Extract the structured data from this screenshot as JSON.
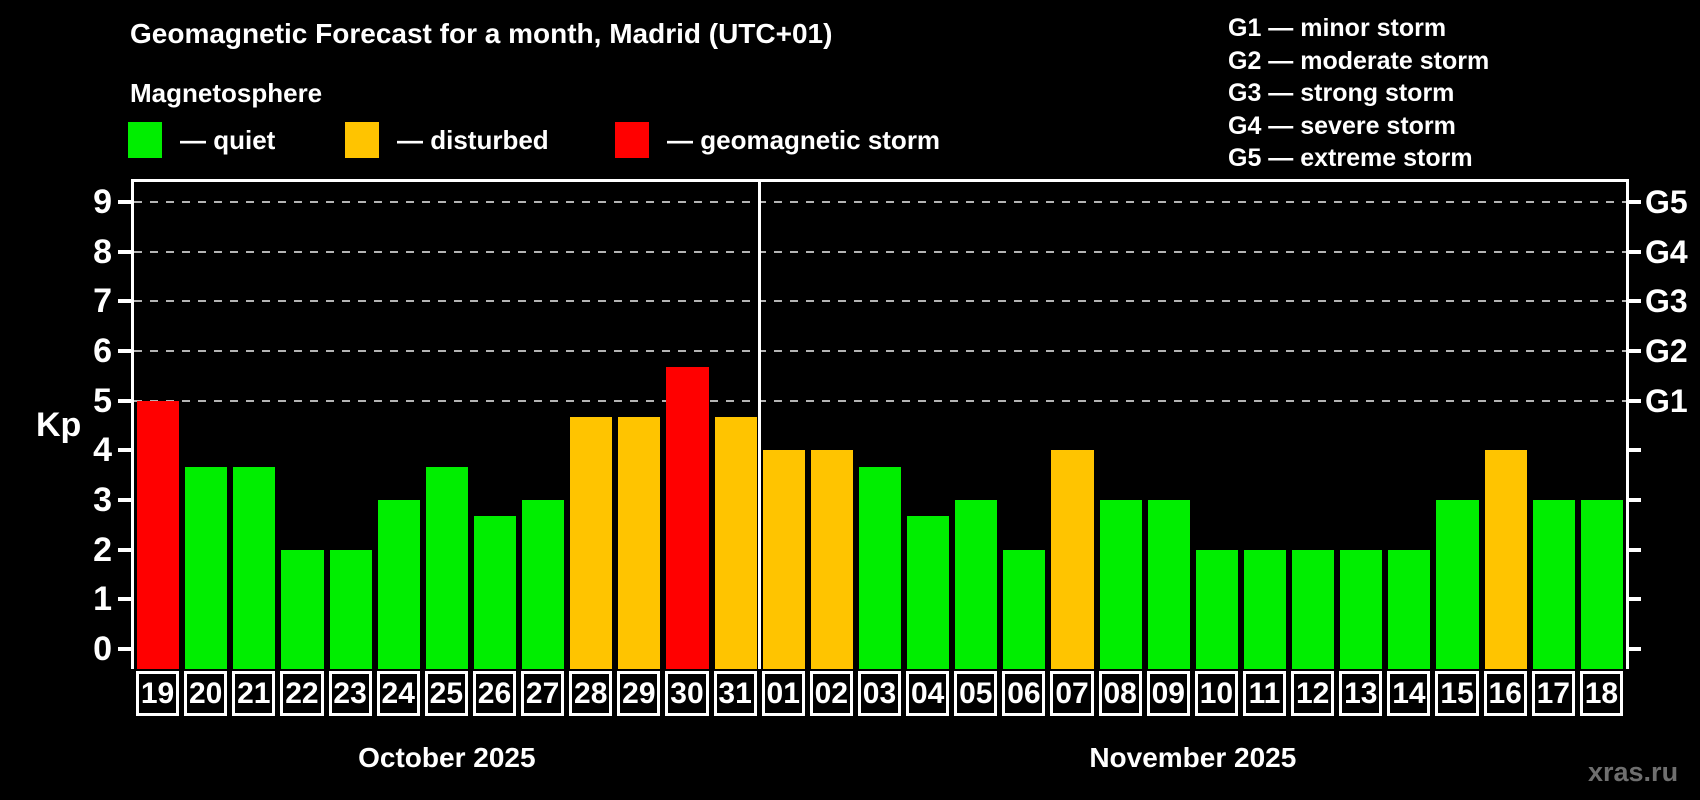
{
  "header": {
    "title": "Geomagnetic Forecast for a month, Madrid (UTC+01)",
    "subtitle": "Magnetosphere",
    "legend": [
      {
        "key": "quiet",
        "label": "— quiet"
      },
      {
        "key": "disturbed",
        "label": "— disturbed"
      },
      {
        "key": "storm",
        "label": "— geomagnetic storm"
      }
    ],
    "g_legend": [
      "G1 — minor storm",
      "G2 — moderate storm",
      "G3 — strong storm",
      "G4 — severe storm",
      "G5 — extreme storm"
    ]
  },
  "colors": {
    "quiet": "#00ee00",
    "disturbed": "#ffc400",
    "storm": "#ff0000",
    "background": "#000000",
    "text": "#ffffff",
    "gridline": "#b4b4b4",
    "watermark": "#6f6f6f"
  },
  "chart_data": {
    "type": "bar",
    "title": "Geomagnetic Forecast for a month, Madrid (UTC+01)",
    "ylabel": "Kp",
    "ylim": [
      -0.4,
      9.4
    ],
    "yticks": [
      0,
      1,
      2,
      3,
      4,
      5,
      6,
      7,
      8,
      9
    ],
    "gridlines_at": [
      5,
      6,
      7,
      8,
      9
    ],
    "grid": "dashed horizontal lines at storm levels G1-G5 only",
    "legend_position": "top",
    "right_axis": [
      {
        "kp": 5,
        "label": "G1"
      },
      {
        "kp": 6,
        "label": "G2"
      },
      {
        "kp": 7,
        "label": "G3"
      },
      {
        "kp": 8,
        "label": "G4"
      },
      {
        "kp": 9,
        "label": "G5"
      }
    ],
    "months": [
      {
        "label": "October 2025",
        "days": [
          {
            "day": "19",
            "kp": 5.0,
            "status": "storm"
          },
          {
            "day": "20",
            "kp": 3.67,
            "status": "quiet"
          },
          {
            "day": "21",
            "kp": 3.67,
            "status": "quiet"
          },
          {
            "day": "22",
            "kp": 2.0,
            "status": "quiet"
          },
          {
            "day": "23",
            "kp": 2.0,
            "status": "quiet"
          },
          {
            "day": "24",
            "kp": 3.0,
            "status": "quiet"
          },
          {
            "day": "25",
            "kp": 3.67,
            "status": "quiet"
          },
          {
            "day": "26",
            "kp": 2.67,
            "status": "quiet"
          },
          {
            "day": "27",
            "kp": 3.0,
            "status": "quiet"
          },
          {
            "day": "28",
            "kp": 4.67,
            "status": "disturbed"
          },
          {
            "day": "29",
            "kp": 4.67,
            "status": "disturbed"
          },
          {
            "day": "30",
            "kp": 5.67,
            "status": "storm"
          },
          {
            "day": "31",
            "kp": 4.67,
            "status": "disturbed"
          }
        ]
      },
      {
        "label": "November 2025",
        "days": [
          {
            "day": "01",
            "kp": 4.0,
            "status": "disturbed"
          },
          {
            "day": "02",
            "kp": 4.0,
            "status": "disturbed"
          },
          {
            "day": "03",
            "kp": 3.67,
            "status": "quiet"
          },
          {
            "day": "04",
            "kp": 2.67,
            "status": "quiet"
          },
          {
            "day": "05",
            "kp": 3.0,
            "status": "quiet"
          },
          {
            "day": "06",
            "kp": 2.0,
            "status": "quiet"
          },
          {
            "day": "07",
            "kp": 4.0,
            "status": "disturbed"
          },
          {
            "day": "08",
            "kp": 3.0,
            "status": "quiet"
          },
          {
            "day": "09",
            "kp": 3.0,
            "status": "quiet"
          },
          {
            "day": "10",
            "kp": 2.0,
            "status": "quiet"
          },
          {
            "day": "11",
            "kp": 2.0,
            "status": "quiet"
          },
          {
            "day": "12",
            "kp": 2.0,
            "status": "quiet"
          },
          {
            "day": "13",
            "kp": 2.0,
            "status": "quiet"
          },
          {
            "day": "14",
            "kp": 2.0,
            "status": "quiet"
          },
          {
            "day": "15",
            "kp": 3.0,
            "status": "quiet"
          },
          {
            "day": "16",
            "kp": 4.0,
            "status": "disturbed"
          },
          {
            "day": "17",
            "kp": 3.0,
            "status": "quiet"
          },
          {
            "day": "18",
            "kp": 3.0,
            "status": "quiet"
          }
        ]
      }
    ]
  },
  "watermark": "xras.ru"
}
